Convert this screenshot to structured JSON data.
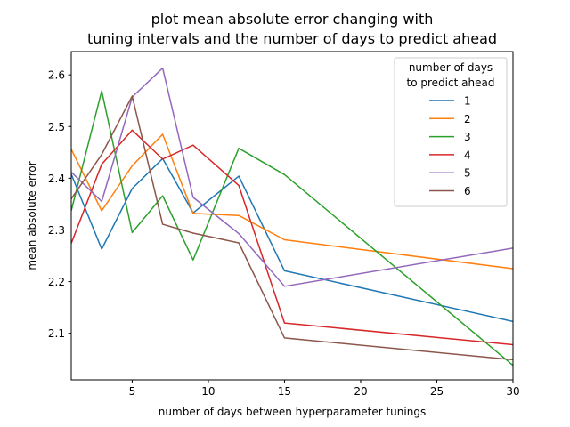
{
  "chart_data": {
    "type": "line",
    "title_line1": "plot mean absolute error changing with",
    "title_line2": "tuning intervals and the number of days to predict ahead",
    "xlabel": "number of days between hyperparameter tunings",
    "ylabel": "mean absolute error",
    "xlim": [
      1,
      30
    ],
    "ylim": [
      2.01,
      2.645
    ],
    "x": [
      1,
      3,
      5,
      7,
      9,
      12,
      15,
      30
    ],
    "xticks": [
      5,
      10,
      15,
      20,
      25,
      30
    ],
    "yticks": [
      2.1,
      2.2,
      2.3,
      2.4,
      2.5,
      2.6
    ],
    "grid": false,
    "legend_title_line1": "number of days",
    "legend_title_line2": "to predict ahead",
    "legend_position": "top-right",
    "series": [
      {
        "name": "1",
        "color": "#1f77b4",
        "values": [
          2.408,
          2.263,
          2.38,
          2.438,
          2.333,
          2.404,
          2.221,
          2.123
        ]
      },
      {
        "name": "2",
        "color": "#ff7f0e",
        "values": [
          2.456,
          2.337,
          2.424,
          2.485,
          2.332,
          2.328,
          2.281,
          2.225
        ]
      },
      {
        "name": "3",
        "color": "#2ca02c",
        "values": [
          2.337,
          2.569,
          2.295,
          2.366,
          2.242,
          2.458,
          2.407,
          2.038
        ]
      },
      {
        "name": "4",
        "color": "#d62728",
        "values": [
          2.274,
          2.427,
          2.493,
          2.437,
          2.464,
          2.386,
          2.12,
          2.078
        ]
      },
      {
        "name": "5",
        "color": "#9467bd",
        "values": [
          2.412,
          2.355,
          2.557,
          2.613,
          2.363,
          2.293,
          2.191,
          2.265
        ]
      },
      {
        "name": "6",
        "color": "#8c564b",
        "values": [
          2.36,
          2.446,
          2.559,
          2.311,
          2.294,
          2.275,
          2.091,
          2.049
        ]
      }
    ]
  }
}
